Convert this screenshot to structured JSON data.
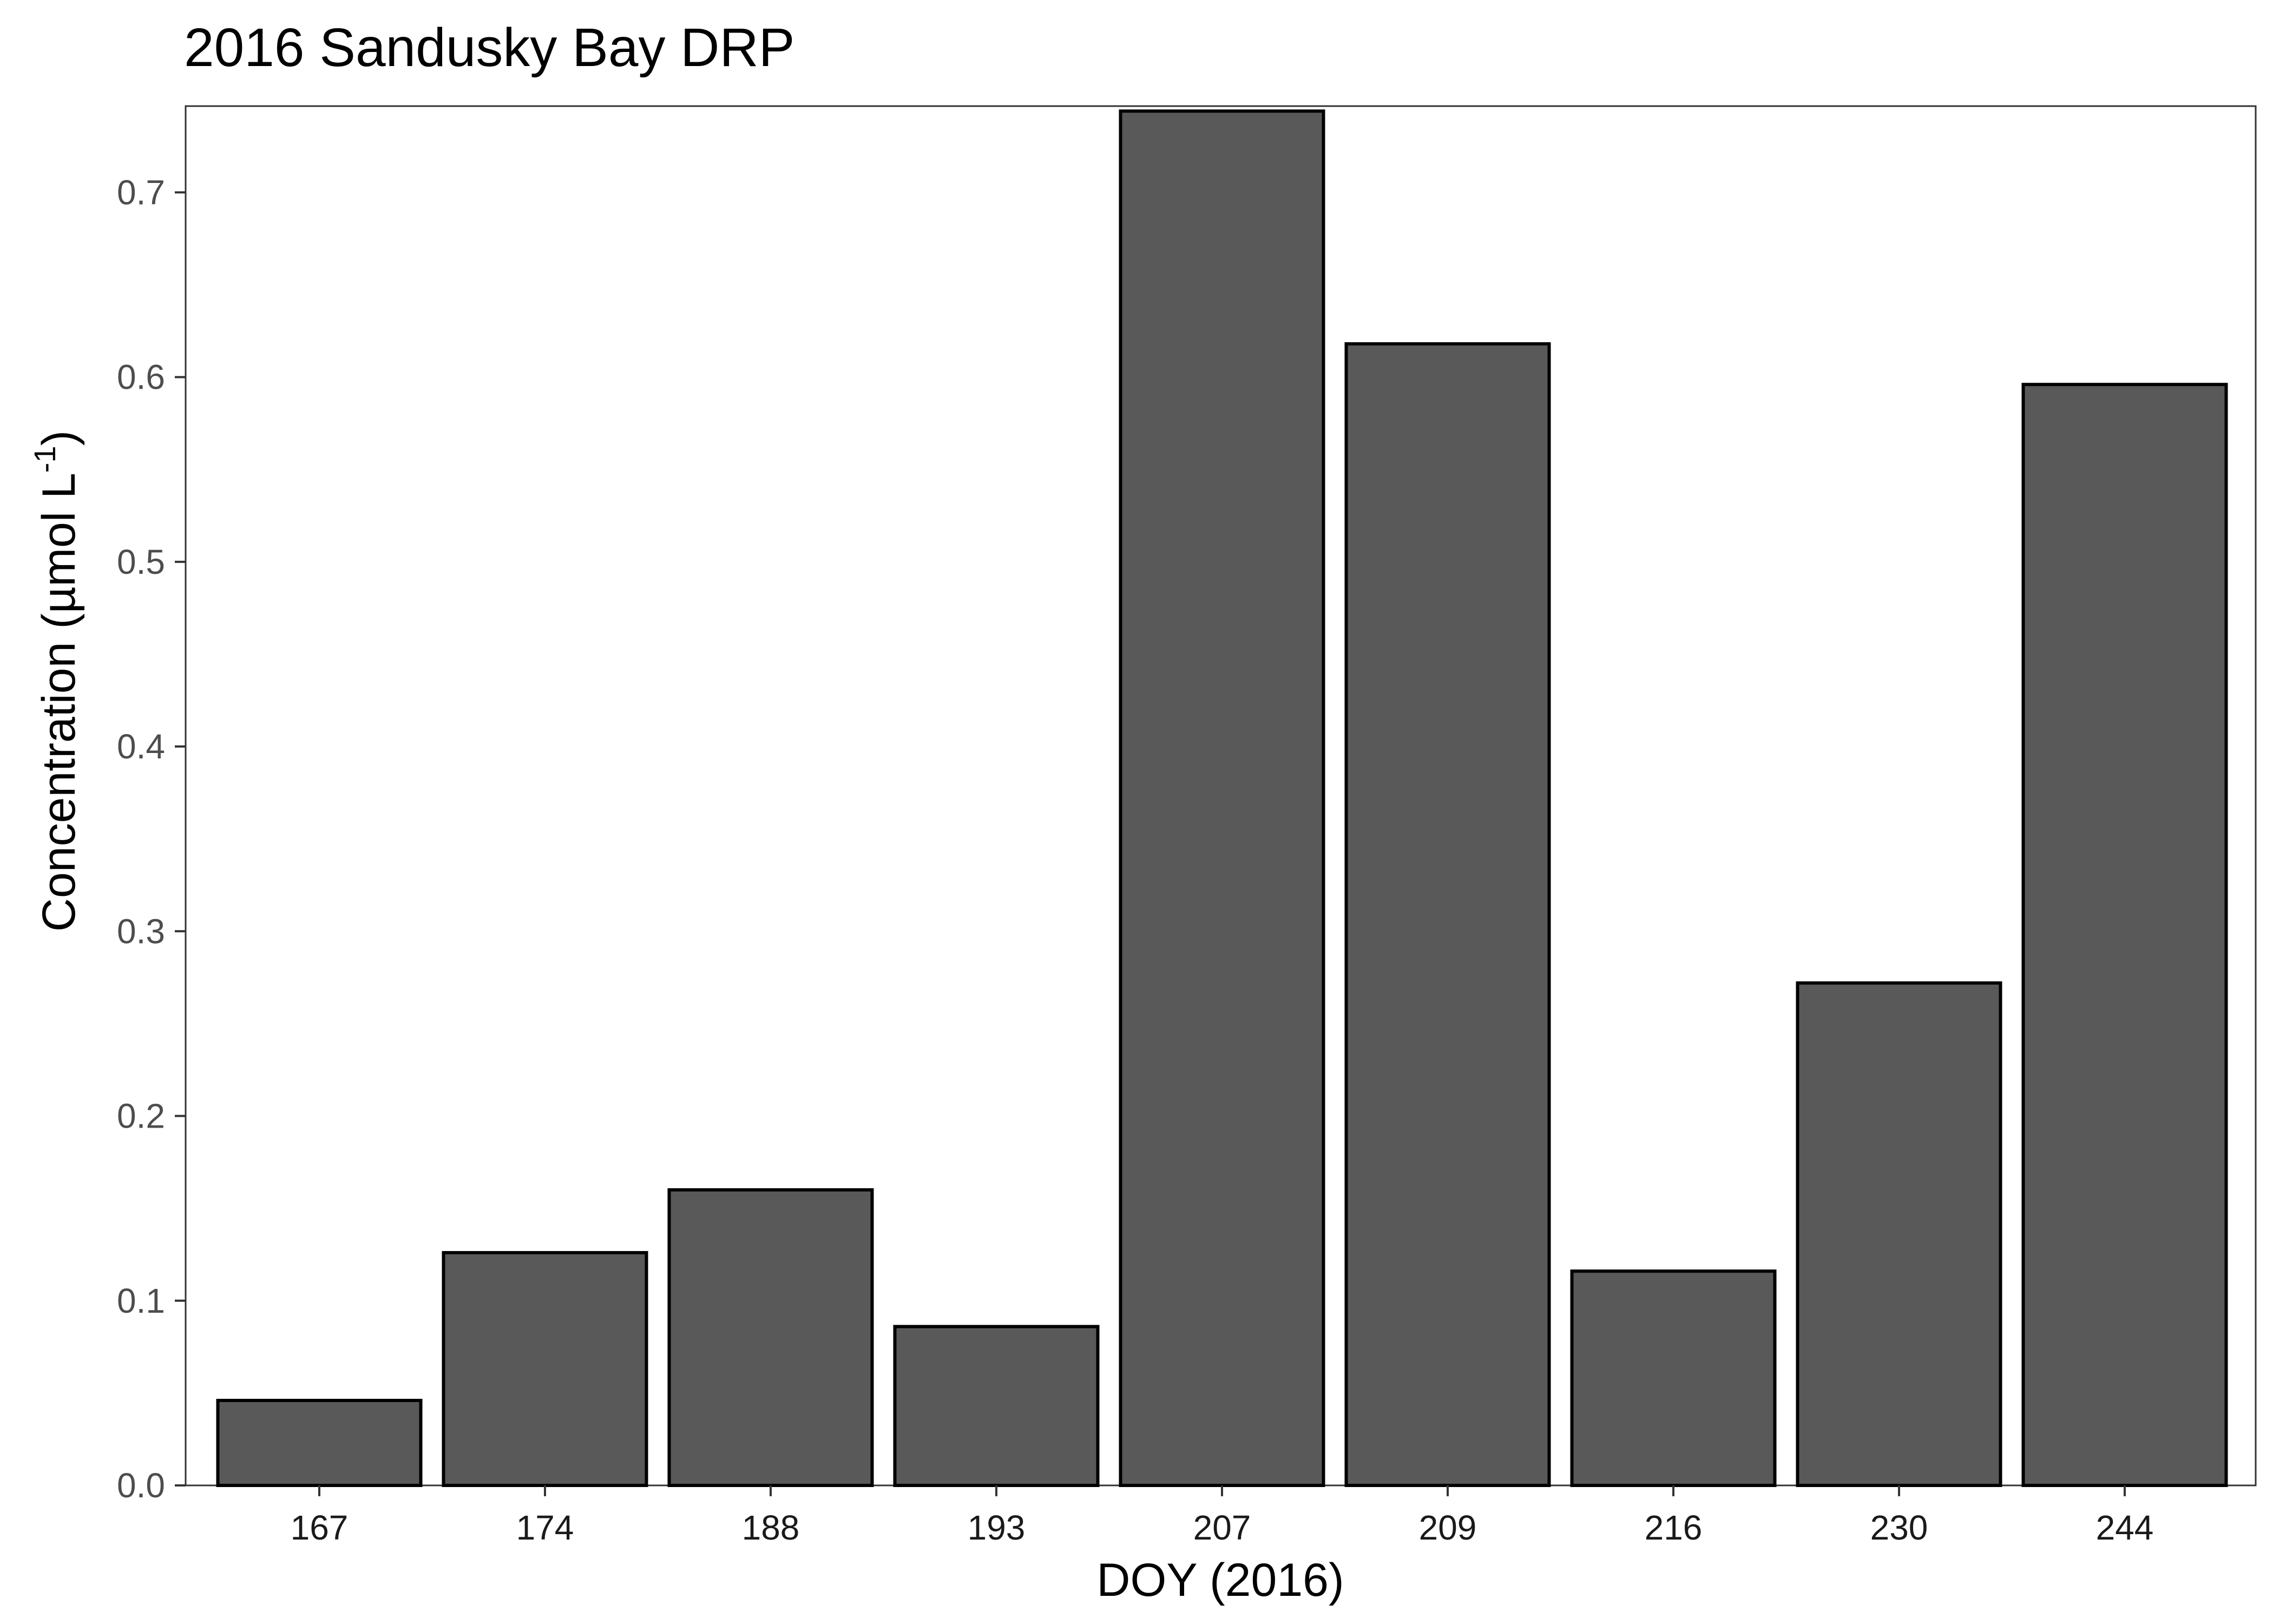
{
  "chart_data": {
    "type": "bar",
    "title": "2016 Sandusky Bay DRP",
    "xlabel": "DOY (2016)",
    "ylabel_main": "Concentration (µmol L",
    "ylabel_sup": "-1",
    "ylabel_close": ")",
    "categories": [
      "167",
      "174",
      "188",
      "193",
      "207",
      "209",
      "216",
      "230",
      "244"
    ],
    "values": [
      0.046,
      0.126,
      0.16,
      0.086,
      0.744,
      0.618,
      0.116,
      0.272,
      0.596
    ],
    "ylim": [
      0,
      0.7467
    ],
    "yticks": [
      "0.0",
      "0.1",
      "0.2",
      "0.3",
      "0.4",
      "0.5",
      "0.6",
      "0.7"
    ],
    "grid": false,
    "legend": "none",
    "colors": {
      "bar_fill": "#595959",
      "bar_stroke": "#000000"
    }
  }
}
